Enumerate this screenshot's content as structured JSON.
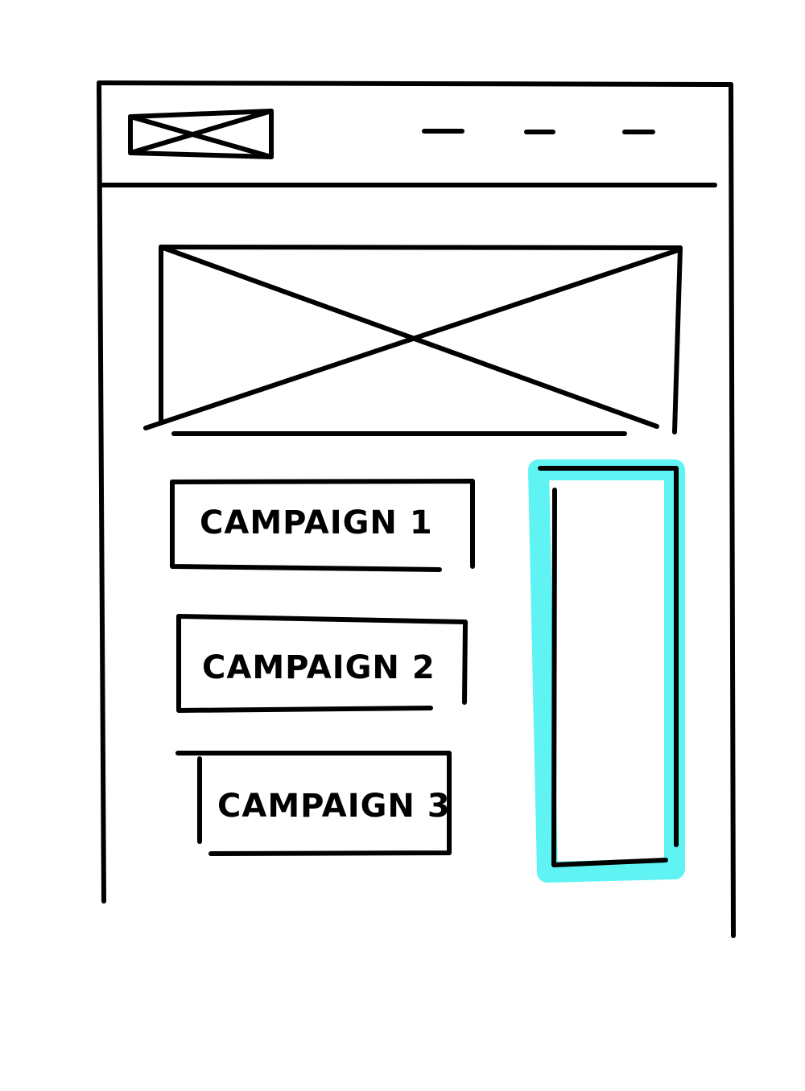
{
  "header": {
    "nav_links": [
      "",
      "",
      ""
    ]
  },
  "campaigns": [
    {
      "label": "CAMPAIGN 1"
    },
    {
      "label": "CAMPAIGN 2"
    },
    {
      "label": "CAMPAIGN 3"
    }
  ],
  "colors": {
    "ink": "#000000",
    "highlight": "#5ff3f3"
  }
}
